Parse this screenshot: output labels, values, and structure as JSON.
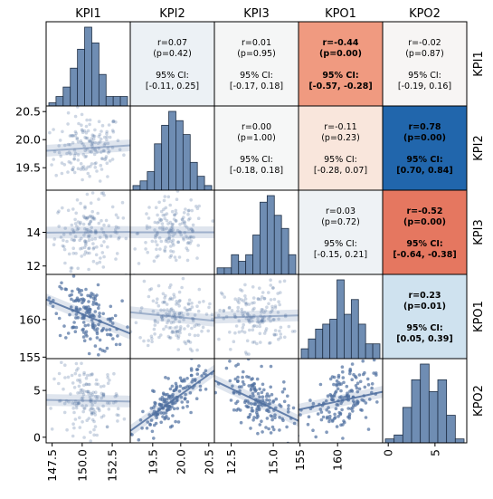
{
  "chart_data": {
    "type": "scatter",
    "variables": [
      "KPI1",
      "KPI2",
      "KPI3",
      "KPO1",
      "KPO2"
    ],
    "colors": {
      "marker": "#4f6f9f",
      "bar_fill": "#6f8db3",
      "bar_edge": "#1f2f45",
      "positive_strong": "#2166ac",
      "negative_strong": "#e06c4f"
    },
    "axis_ranges": {
      "KPI1": [
        147.0,
        154.0
      ],
      "KPI2": [
        19.1,
        20.6
      ],
      "KPI3": [
        11.5,
        16.5
      ],
      "KPO1": [
        154.8,
        166.0
      ],
      "KPO2": [
        -0.6,
        8.4
      ]
    },
    "ticks": {
      "KPI1": [
        "147.5",
        "150.0",
        "152.5"
      ],
      "KPI2": [
        "19.5",
        "20.0",
        "20.5"
      ],
      "KPI3": [
        "12.5",
        "15.0"
      ],
      "KPO1": [
        "155",
        "160"
      ],
      "KPO2": [
        "0",
        "5"
      ]
    },
    "row_ticks": {
      "KPI1": [],
      "KPI2": [
        "20.5",
        "20.0",
        "19.5"
      ],
      "KPI3": [
        "14",
        "12"
      ],
      "KPO1": [
        "160",
        "155"
      ],
      "KPO2": [
        "5",
        "0"
      ]
    },
    "histograms": {
      "KPI1": [
        1,
        3,
        6,
        12,
        18,
        25,
        20,
        10,
        3,
        3,
        3
      ],
      "KPI2": [
        1,
        2,
        4,
        10,
        14,
        17,
        15,
        12,
        6,
        3,
        1
      ],
      "KPI3": [
        1,
        1,
        3,
        2,
        3,
        6,
        11,
        12,
        9,
        7,
        3
      ],
      "KPO1": [
        2,
        4,
        6,
        7,
        8,
        16,
        9,
        12,
        7,
        3,
        3
      ],
      "KPO2": [
        1,
        2,
        9,
        16,
        20,
        13,
        16,
        7,
        1
      ]
    },
    "correlations": [
      {
        "row": "KPI1",
        "col": "KPI2",
        "r": "r=0.07",
        "p": "(p=0.42)",
        "ci_label": "95% CI:",
        "ci": "[-0.11, 0.25]",
        "fill": "#ecf1f5",
        "bold": false
      },
      {
        "row": "KPI1",
        "col": "KPI3",
        "r": "r=0.01",
        "p": "(p=0.95)",
        "ci_label": "95% CI:",
        "ci": "[-0.17, 0.18]",
        "fill": "#f5f6f6",
        "bold": false
      },
      {
        "row": "KPI1",
        "col": "KPO1",
        "r": "r=-0.44",
        "p": "(p=0.00)",
        "ci_label": "95% CI:",
        "ci": "[-0.57, -0.28]",
        "fill": "#f09a80",
        "bold": true
      },
      {
        "row": "KPI1",
        "col": "KPO2",
        "r": "r=-0.02",
        "p": "(p=0.87)",
        "ci_label": "95% CI:",
        "ci": "[-0.19, 0.16]",
        "fill": "#f7f5f4",
        "bold": false
      },
      {
        "row": "KPI2",
        "col": "KPI3",
        "r": "r=0.00",
        "p": "(p=1.00)",
        "ci_label": "95% CI:",
        "ci": "[-0.18, 0.18]",
        "fill": "#f6f7f7",
        "bold": false
      },
      {
        "row": "KPI2",
        "col": "KPO1",
        "r": "r=-0.11",
        "p": "(p=0.23)",
        "ci_label": "95% CI:",
        "ci": "[-0.28, 0.07]",
        "fill": "#f9e6dc",
        "bold": false
      },
      {
        "row": "KPI2",
        "col": "KPO2",
        "r": "r=0.78",
        "p": "(p=0.00)",
        "ci_label": "95% CI:",
        "ci": "[0.70, 0.84]",
        "fill": "#2166ac",
        "bold": true
      },
      {
        "row": "KPI3",
        "col": "KPO1",
        "r": "r=0.03",
        "p": "(p=0.72)",
        "ci_label": "95% CI:",
        "ci": "[-0.15, 0.21]",
        "fill": "#eef2f5",
        "bold": false
      },
      {
        "row": "KPI3",
        "col": "KPO2",
        "r": "r=-0.52",
        "p": "(p=0.00)",
        "ci_label": "95% CI:",
        "ci": "[-0.64, -0.38]",
        "fill": "#e57760",
        "bold": true
      },
      {
        "row": "KPO1",
        "col": "KPO2",
        "r": "r=0.23",
        "p": "(p=0.01)",
        "ci_label": "95% CI:",
        "ci": "[0.05, 0.39]",
        "fill": "#cfe2ef",
        "bold": true
      }
    ],
    "scatter_panels": [
      {
        "row": "KPI2",
        "col": "KPI1",
        "slope": 0.07,
        "faint": true
      },
      {
        "row": "KPI3",
        "col": "KPI1",
        "slope": 0.01,
        "faint": true
      },
      {
        "row": "KPI3",
        "col": "KPI2",
        "slope": 0.0,
        "faint": true
      },
      {
        "row": "KPO1",
        "col": "KPI1",
        "slope": -0.44,
        "faint": false
      },
      {
        "row": "KPO1",
        "col": "KPI2",
        "slope": -0.11,
        "faint": true
      },
      {
        "row": "KPO1",
        "col": "KPI3",
        "slope": 0.03,
        "faint": true
      },
      {
        "row": "KPO2",
        "col": "KPI1",
        "slope": -0.02,
        "faint": true
      },
      {
        "row": "KPO2",
        "col": "KPI2",
        "slope": 0.78,
        "faint": false
      },
      {
        "row": "KPO2",
        "col": "KPI3",
        "slope": -0.52,
        "faint": false
      },
      {
        "row": "KPO2",
        "col": "KPO1",
        "slope": 0.23,
        "faint": false
      }
    ]
  }
}
